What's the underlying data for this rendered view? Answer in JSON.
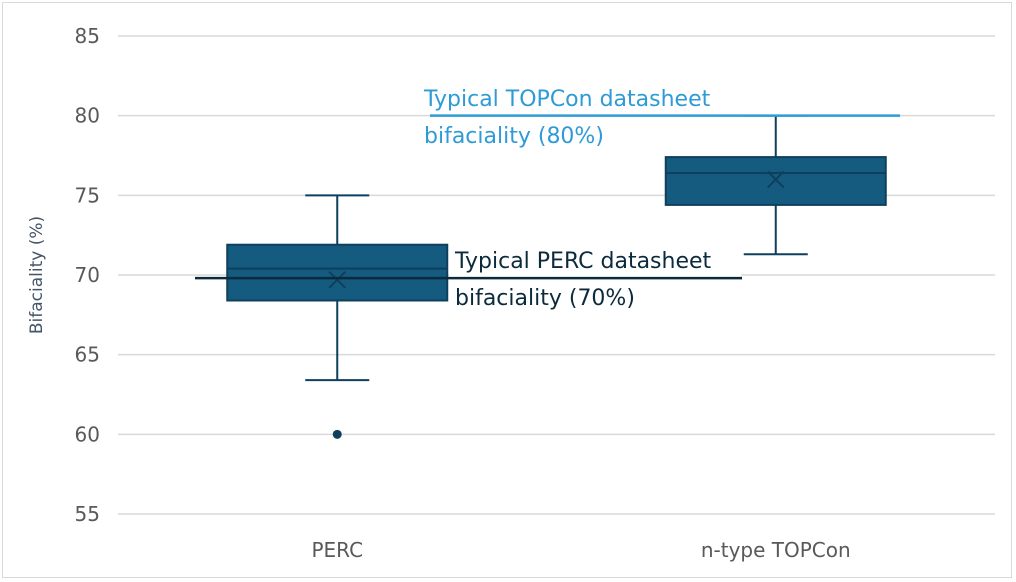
{
  "chart_data": {
    "type": "box",
    "ylabel": "Bifaciality (%)",
    "ylim": [
      55,
      85
    ],
    "yticks": [
      55,
      60,
      65,
      70,
      75,
      80,
      85
    ],
    "grid": true,
    "categories": [
      "PERC",
      "n-type TOPCon"
    ],
    "boxes": [
      {
        "category": "PERC",
        "min": 63.4,
        "q1": 68.4,
        "median": 70.4,
        "q3": 71.9,
        "max": 75.0,
        "mean": 69.7,
        "outliers": [
          60.0
        ]
      },
      {
        "category": "n-type TOPCon",
        "min": 71.3,
        "q1": 74.4,
        "median": 76.4,
        "q3": 77.4,
        "max": 80.0,
        "mean": 76.0,
        "outliers": []
      }
    ],
    "reference_lines": [
      {
        "value": 80,
        "label_line1": "Typical TOPCon datasheet",
        "label_line2": "bifaciality (80%)",
        "color": "#2e9bd6"
      },
      {
        "value": 69.8,
        "label_line1": "Typical PERC datasheet",
        "label_line2": "bifaciality (70%)",
        "color": "#0b2a3c"
      }
    ],
    "colors": {
      "box_fill": "#155b80",
      "box_stroke": "#0e3f5c",
      "grid": "#d9d9d9",
      "axis": "#bfbfbf"
    }
  }
}
